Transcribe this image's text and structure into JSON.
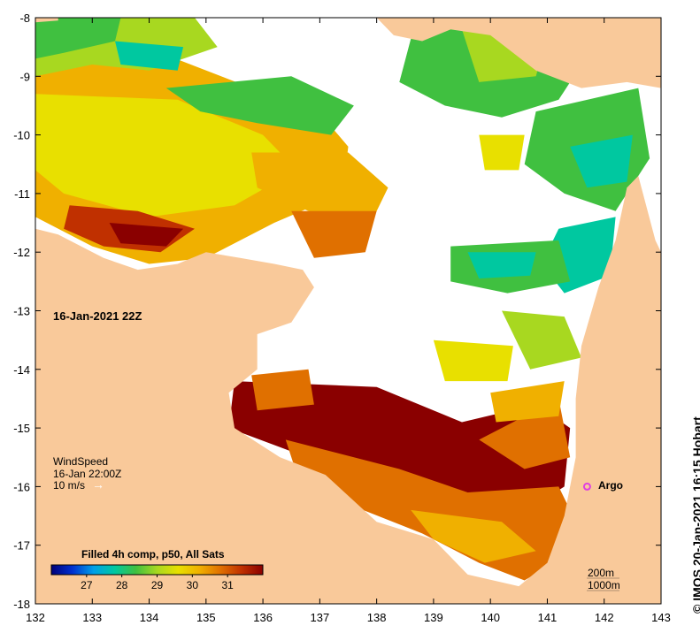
{
  "map": {
    "lon_range": [
      132,
      143
    ],
    "lat_range": [
      -18,
      -8
    ],
    "lon_ticks": [
      "132",
      "133",
      "134",
      "135",
      "136",
      "137",
      "138",
      "139",
      "140",
      "141",
      "142",
      "143"
    ],
    "lat_ticks": [
      "-8",
      "-9",
      "-10",
      "-11",
      "-12",
      "-13",
      "-14",
      "-15",
      "-16",
      "-17",
      "-18"
    ],
    "land_color": "#f9c99a",
    "nodata_color": "#ffffff"
  },
  "date_label": "16-Jan-2021 22Z",
  "wind": {
    "title": "WindSpeed",
    "time": "16-Jan 22:00Z",
    "scale": "10 m/s",
    "arrow_glyph": "→"
  },
  "argo": {
    "label": "Argo",
    "lon": 141.7,
    "lat": -16.0,
    "color": "#e040e0"
  },
  "colorbar": {
    "title": "Filled 4h comp, p50, All Sats",
    "range": [
      26,
      32
    ],
    "ticks": [
      "27",
      "28",
      "29",
      "30",
      "31"
    ],
    "colors": [
      "#00007a",
      "#0030d0",
      "#00a0e8",
      "#00c8a0",
      "#40c040",
      "#a8d820",
      "#e8e000",
      "#f0b000",
      "#e07000",
      "#c03000",
      "#8a0000"
    ]
  },
  "contours": {
    "c200": "200m",
    "c1000": "1000m"
  },
  "credit": "© IMOS 20-Jan-2021 16:15 Hobart"
}
